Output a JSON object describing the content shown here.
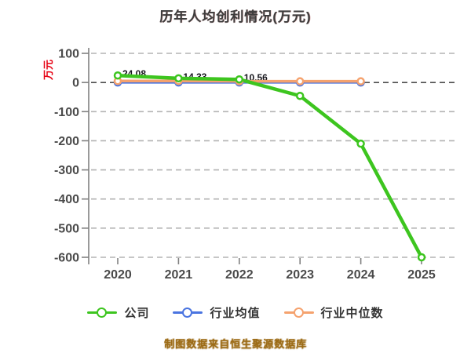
{
  "title": "历年人均创利情况(万元)",
  "y_axis_unit_label": "万元",
  "watermark_text": "制图数据来自恒生聚源数据库",
  "legend": {
    "items": [
      {
        "label": "公司"
      },
      {
        "label": "行业均值"
      },
      {
        "label": "行业中位数"
      }
    ]
  },
  "colors": {
    "company_line": "#3dc51f",
    "industry_avg_line": "#4a74e0",
    "industry_median_line": "#f5a26e",
    "marker_fill": "#ffffff",
    "grid_line": "#b3b3b3",
    "zero_grid_line": "#4d4d4d",
    "axis": "#808080",
    "tick_label": "#4a4a4a",
    "title_text": "#3d3d3d",
    "unit_label": "#e60012",
    "data_label": "#16161d",
    "watermark": "#9c6b16"
  },
  "chart_data": {
    "type": "line",
    "title": "历年人均创利情况(万元)",
    "xlabel": "",
    "ylabel": "万元",
    "x": [
      2020,
      2021,
      2022,
      2023,
      2024,
      2025
    ],
    "xticklabels": [
      "2020",
      "2021",
      "2022",
      "2023",
      "2024",
      "2025"
    ],
    "ylim": [
      -600,
      100
    ],
    "yticks": [
      100,
      0,
      -100,
      -200,
      -300,
      -400,
      -500,
      -600
    ],
    "grid": true,
    "grid_style": "dashed",
    "legend_position": "bottom",
    "series": [
      {
        "name": "公司",
        "key": "company",
        "color": "#3dc51f",
        "x": [
          2020,
          2021,
          2022,
          2023,
          2024,
          2025
        ],
        "values": [
          24.08,
          14.33,
          10.56,
          -46,
          -210,
          -600
        ],
        "point_labels": [
          "24.08",
          "14.33",
          "10.56",
          "",
          "",
          ""
        ]
      },
      {
        "name": "行业均值",
        "key": "industry-average",
        "color": "#4a74e0",
        "x": [
          2020,
          2021,
          2022,
          2023,
          2024
        ],
        "values": [
          0,
          0,
          0,
          0,
          0
        ],
        "point_labels": [
          "",
          "",
          "",
          "",
          ""
        ]
      },
      {
        "name": "行业中位数",
        "key": "industry-median",
        "color": "#f5a26e",
        "x": [
          2020,
          2021,
          2022,
          2023,
          2024
        ],
        "values": [
          5,
          5,
          4,
          4,
          4
        ],
        "point_labels": [
          "",
          "",
          "",
          "",
          ""
        ]
      }
    ]
  }
}
